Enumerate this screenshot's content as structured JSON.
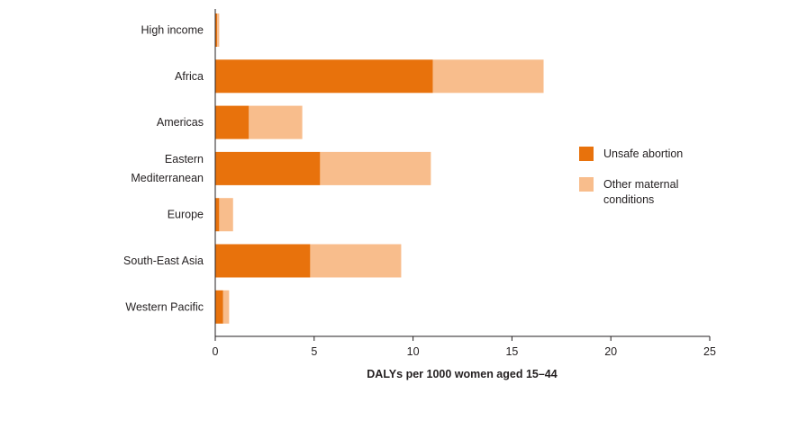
{
  "chart_data": {
    "type": "bar",
    "orientation": "horizontal",
    "stacked": true,
    "categories": [
      [
        "High income"
      ],
      [
        "Africa"
      ],
      [
        "Americas"
      ],
      [
        "Eastern",
        "Mediterranean"
      ],
      [
        "Europe"
      ],
      [
        "South-East Asia"
      ],
      [
        "Western Pacific"
      ]
    ],
    "series": [
      {
        "name": "Unsafe abortion",
        "color": "#e8720c",
        "values": [
          0.1,
          11.0,
          1.7,
          5.3,
          0.2,
          4.8,
          0.4
        ]
      },
      {
        "name": "Other maternal conditions",
        "color": "#f8bd8c",
        "values": [
          0.1,
          5.6,
          2.7,
          5.6,
          0.7,
          4.6,
          0.3
        ]
      }
    ],
    "xlabel": "DALYs per 1000 women aged 15–44",
    "ylabel": "",
    "xlim": [
      0,
      25
    ],
    "xticks": [
      "0",
      "5",
      "10",
      "15",
      "20",
      "25"
    ],
    "legend": {
      "position": "right",
      "entries": [
        [
          "Unsafe abortion"
        ],
        [
          "Other maternal",
          "conditions"
        ]
      ]
    },
    "grid": false
  }
}
